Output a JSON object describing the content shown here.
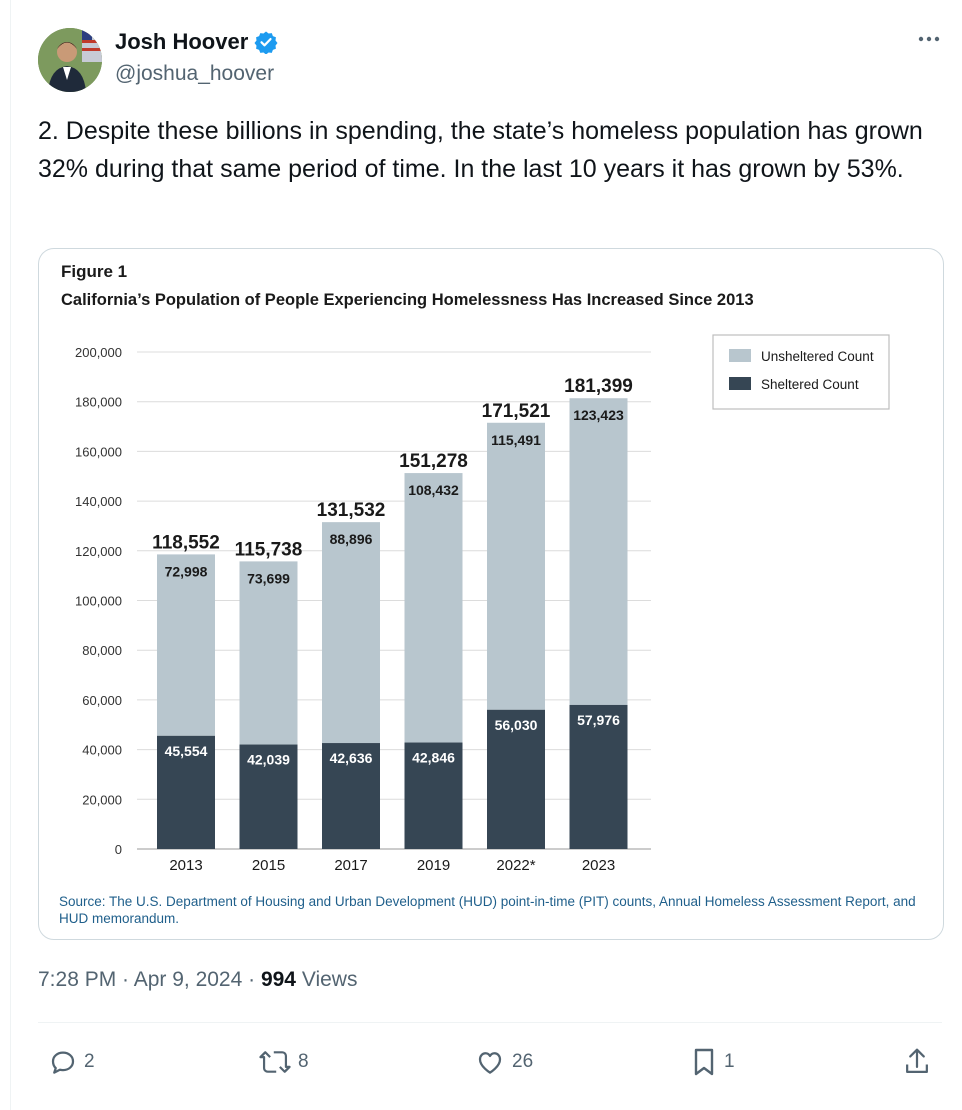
{
  "tweet": {
    "author_name": "Josh Hoover",
    "handle": "@joshua_hoover",
    "text": "2. Despite these billions in spending, the state’s homeless population has grown 32% during that same period of time. In the last 10 years it has grown by 53%.",
    "time": "7:28 PM · Apr 9, 2024 · ",
    "views_count": "994",
    "views_label": " Views"
  },
  "actions": {
    "replies": "2",
    "reposts": "8",
    "likes": "26",
    "bookmarks": "1"
  },
  "colors": {
    "unsheltered": "#b8c6ce",
    "sheltered": "#364654",
    "source": "#1f5f8b",
    "verified": "#1d9bf0"
  },
  "chart_data": {
    "type": "bar",
    "figure_label": "Figure 1",
    "title": "California’s Population of People Experiencing Homelessness Has Increased Since 2013",
    "categories": [
      "2013",
      "2015",
      "2017",
      "2019",
      "2022*",
      "2023"
    ],
    "series": [
      {
        "name": "Sheltered Count",
        "values": [
          45554,
          42039,
          42636,
          42846,
          56030,
          57976
        ],
        "labels": [
          "45,554",
          "42,039",
          "42,636",
          "42,846",
          "56,030",
          "57,976"
        ]
      },
      {
        "name": "Unsheltered Count",
        "values": [
          72998,
          73699,
          88896,
          108432,
          115491,
          123423
        ],
        "labels": [
          "72,998",
          "73,699",
          "88,896",
          "108,432",
          "115,491",
          "123,423"
        ]
      }
    ],
    "totals": [
      "118,552",
      "115,738",
      "131,532",
      "151,278",
      "171,521",
      "181,399"
    ],
    "stacked": true,
    "ylim": [
      0,
      200000
    ],
    "yticks": [
      "0",
      "20,000",
      "40,000",
      "60,000",
      "80,000",
      "100,000",
      "120,000",
      "140,000",
      "160,000",
      "180,000",
      "200,000"
    ],
    "legend": [
      "Unsheltered Count",
      "Sheltered Count"
    ],
    "legend_position": "top-right",
    "grid": true,
    "source": "Source: The U.S. Department of Housing and Urban Development (HUD) point-in-time (PIT) counts, Annual Homeless Assessment Report, and HUD memorandum."
  }
}
